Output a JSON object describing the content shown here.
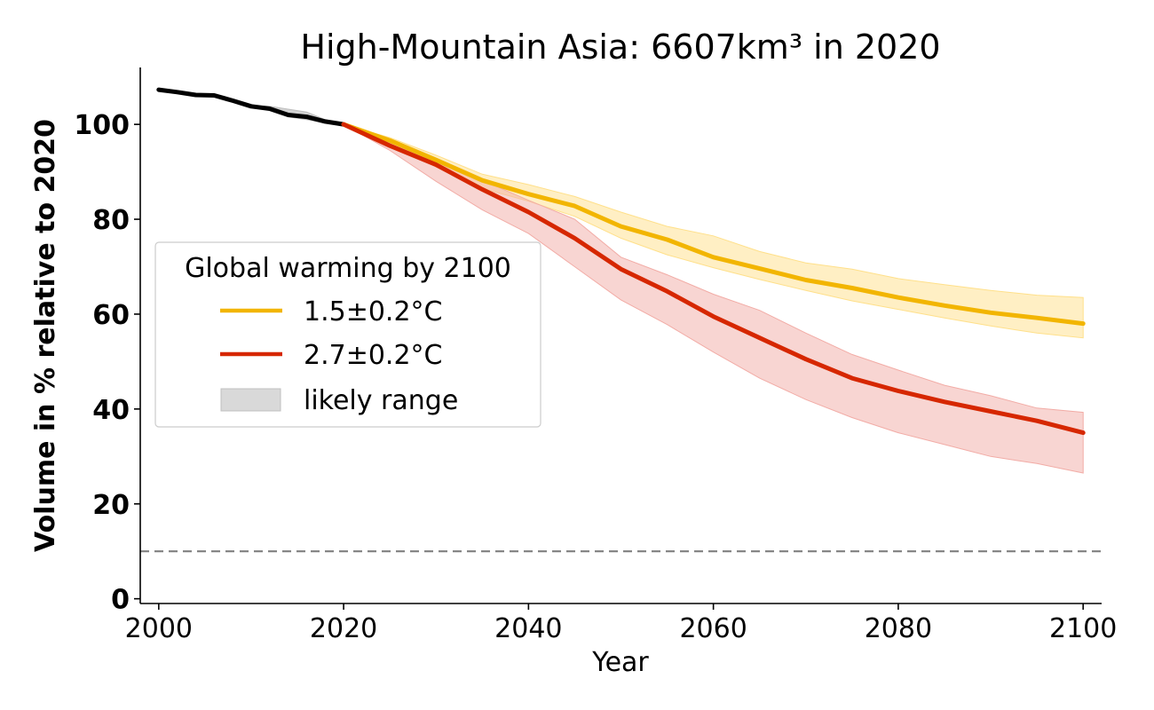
{
  "chart_data": {
    "type": "line",
    "title": "High-Mountain Asia: 6607km³ in 2020",
    "xlabel": "Year",
    "ylabel": "Volume in % relative to 2020",
    "xlim": [
      1998,
      2102
    ],
    "ylim": [
      -1,
      112
    ],
    "x_ticks": [
      2000,
      2020,
      2040,
      2060,
      2080,
      2100
    ],
    "y_ticks": [
      0,
      20,
      40,
      60,
      80,
      100
    ],
    "reference_line": {
      "y": 10,
      "style": "dashed",
      "color": "#808080"
    },
    "legend": {
      "title": "Global warming by 2100",
      "placement": "center-left",
      "entries": [
        {
          "label": "1.5±0.2°C",
          "kind": "line",
          "color": "#f2b500"
        },
        {
          "label": "2.7±0.2°C",
          "kind": "line",
          "color": "#d62700"
        },
        {
          "label": "likely range",
          "kind": "patch",
          "color": "#d9d9d9"
        }
      ]
    },
    "series": [
      {
        "key": "historical",
        "color": "#000000",
        "band_color": "#bfbfbf",
        "x": [
          2000,
          2002,
          2004,
          2006,
          2008,
          2010,
          2012,
          2014,
          2016,
          2018,
          2020
        ],
        "values": [
          107.3,
          106.8,
          106.2,
          106.1,
          105.0,
          103.8,
          103.3,
          102.0,
          101.6,
          100.6,
          100
        ],
        "lower": [
          107.3,
          106.8,
          106.2,
          106.1,
          105.0,
          103.8,
          103.1,
          101.6,
          101.0,
          100.3,
          100
        ],
        "upper": [
          107.3,
          106.8,
          106.2,
          106.1,
          105.0,
          103.9,
          103.8,
          103.2,
          102.6,
          101.0,
          100
        ]
      },
      {
        "key": "scenario-1.5",
        "color": "#f2b500",
        "band_color": "#ffe08a",
        "x": [
          2020,
          2025,
          2030,
          2035,
          2040,
          2045,
          2050,
          2055,
          2060,
          2065,
          2070,
          2075,
          2080,
          2085,
          2090,
          2095,
          2100
        ],
        "values": [
          100,
          96.6,
          92.5,
          88.2,
          85.3,
          82.8,
          78.5,
          75.7,
          72.0,
          69.6,
          67.2,
          65.5,
          63.5,
          61.8,
          60.3,
          59.2,
          58.0
        ],
        "lower": [
          100,
          96.0,
          91.0,
          86.5,
          83.8,
          80.6,
          76.0,
          72.5,
          69.8,
          67.3,
          65.0,
          62.8,
          61.0,
          59.2,
          57.5,
          56.0,
          55.0
        ],
        "upper": [
          100,
          97.2,
          93.5,
          89.5,
          87.3,
          84.8,
          81.5,
          78.5,
          76.5,
          73.2,
          70.8,
          69.5,
          67.5,
          66.2,
          65.0,
          64.0,
          63.5
        ]
      },
      {
        "key": "scenario-2.7",
        "color": "#d62700",
        "band_color": "#f2aca6",
        "x": [
          2020,
          2025,
          2030,
          2035,
          2040,
          2045,
          2050,
          2055,
          2060,
          2065,
          2070,
          2075,
          2080,
          2085,
          2090,
          2095,
          2100
        ],
        "values": [
          100,
          95.5,
          91.5,
          86.3,
          81.5,
          76.0,
          69.5,
          64.8,
          59.5,
          55.0,
          50.5,
          46.5,
          43.8,
          41.5,
          39.5,
          37.5,
          35.0
        ],
        "lower": [
          100,
          94.5,
          88.0,
          82.0,
          77.0,
          70.0,
          63.0,
          57.8,
          52.0,
          46.5,
          42.0,
          38.2,
          35.0,
          32.5,
          30.0,
          28.5,
          26.5
        ],
        "upper": [
          100,
          96.3,
          92.5,
          88.2,
          84.0,
          80.0,
          72.0,
          68.3,
          64.2,
          60.8,
          56.0,
          51.5,
          48.2,
          45.0,
          42.8,
          40.2,
          39.3
        ]
      }
    ]
  }
}
